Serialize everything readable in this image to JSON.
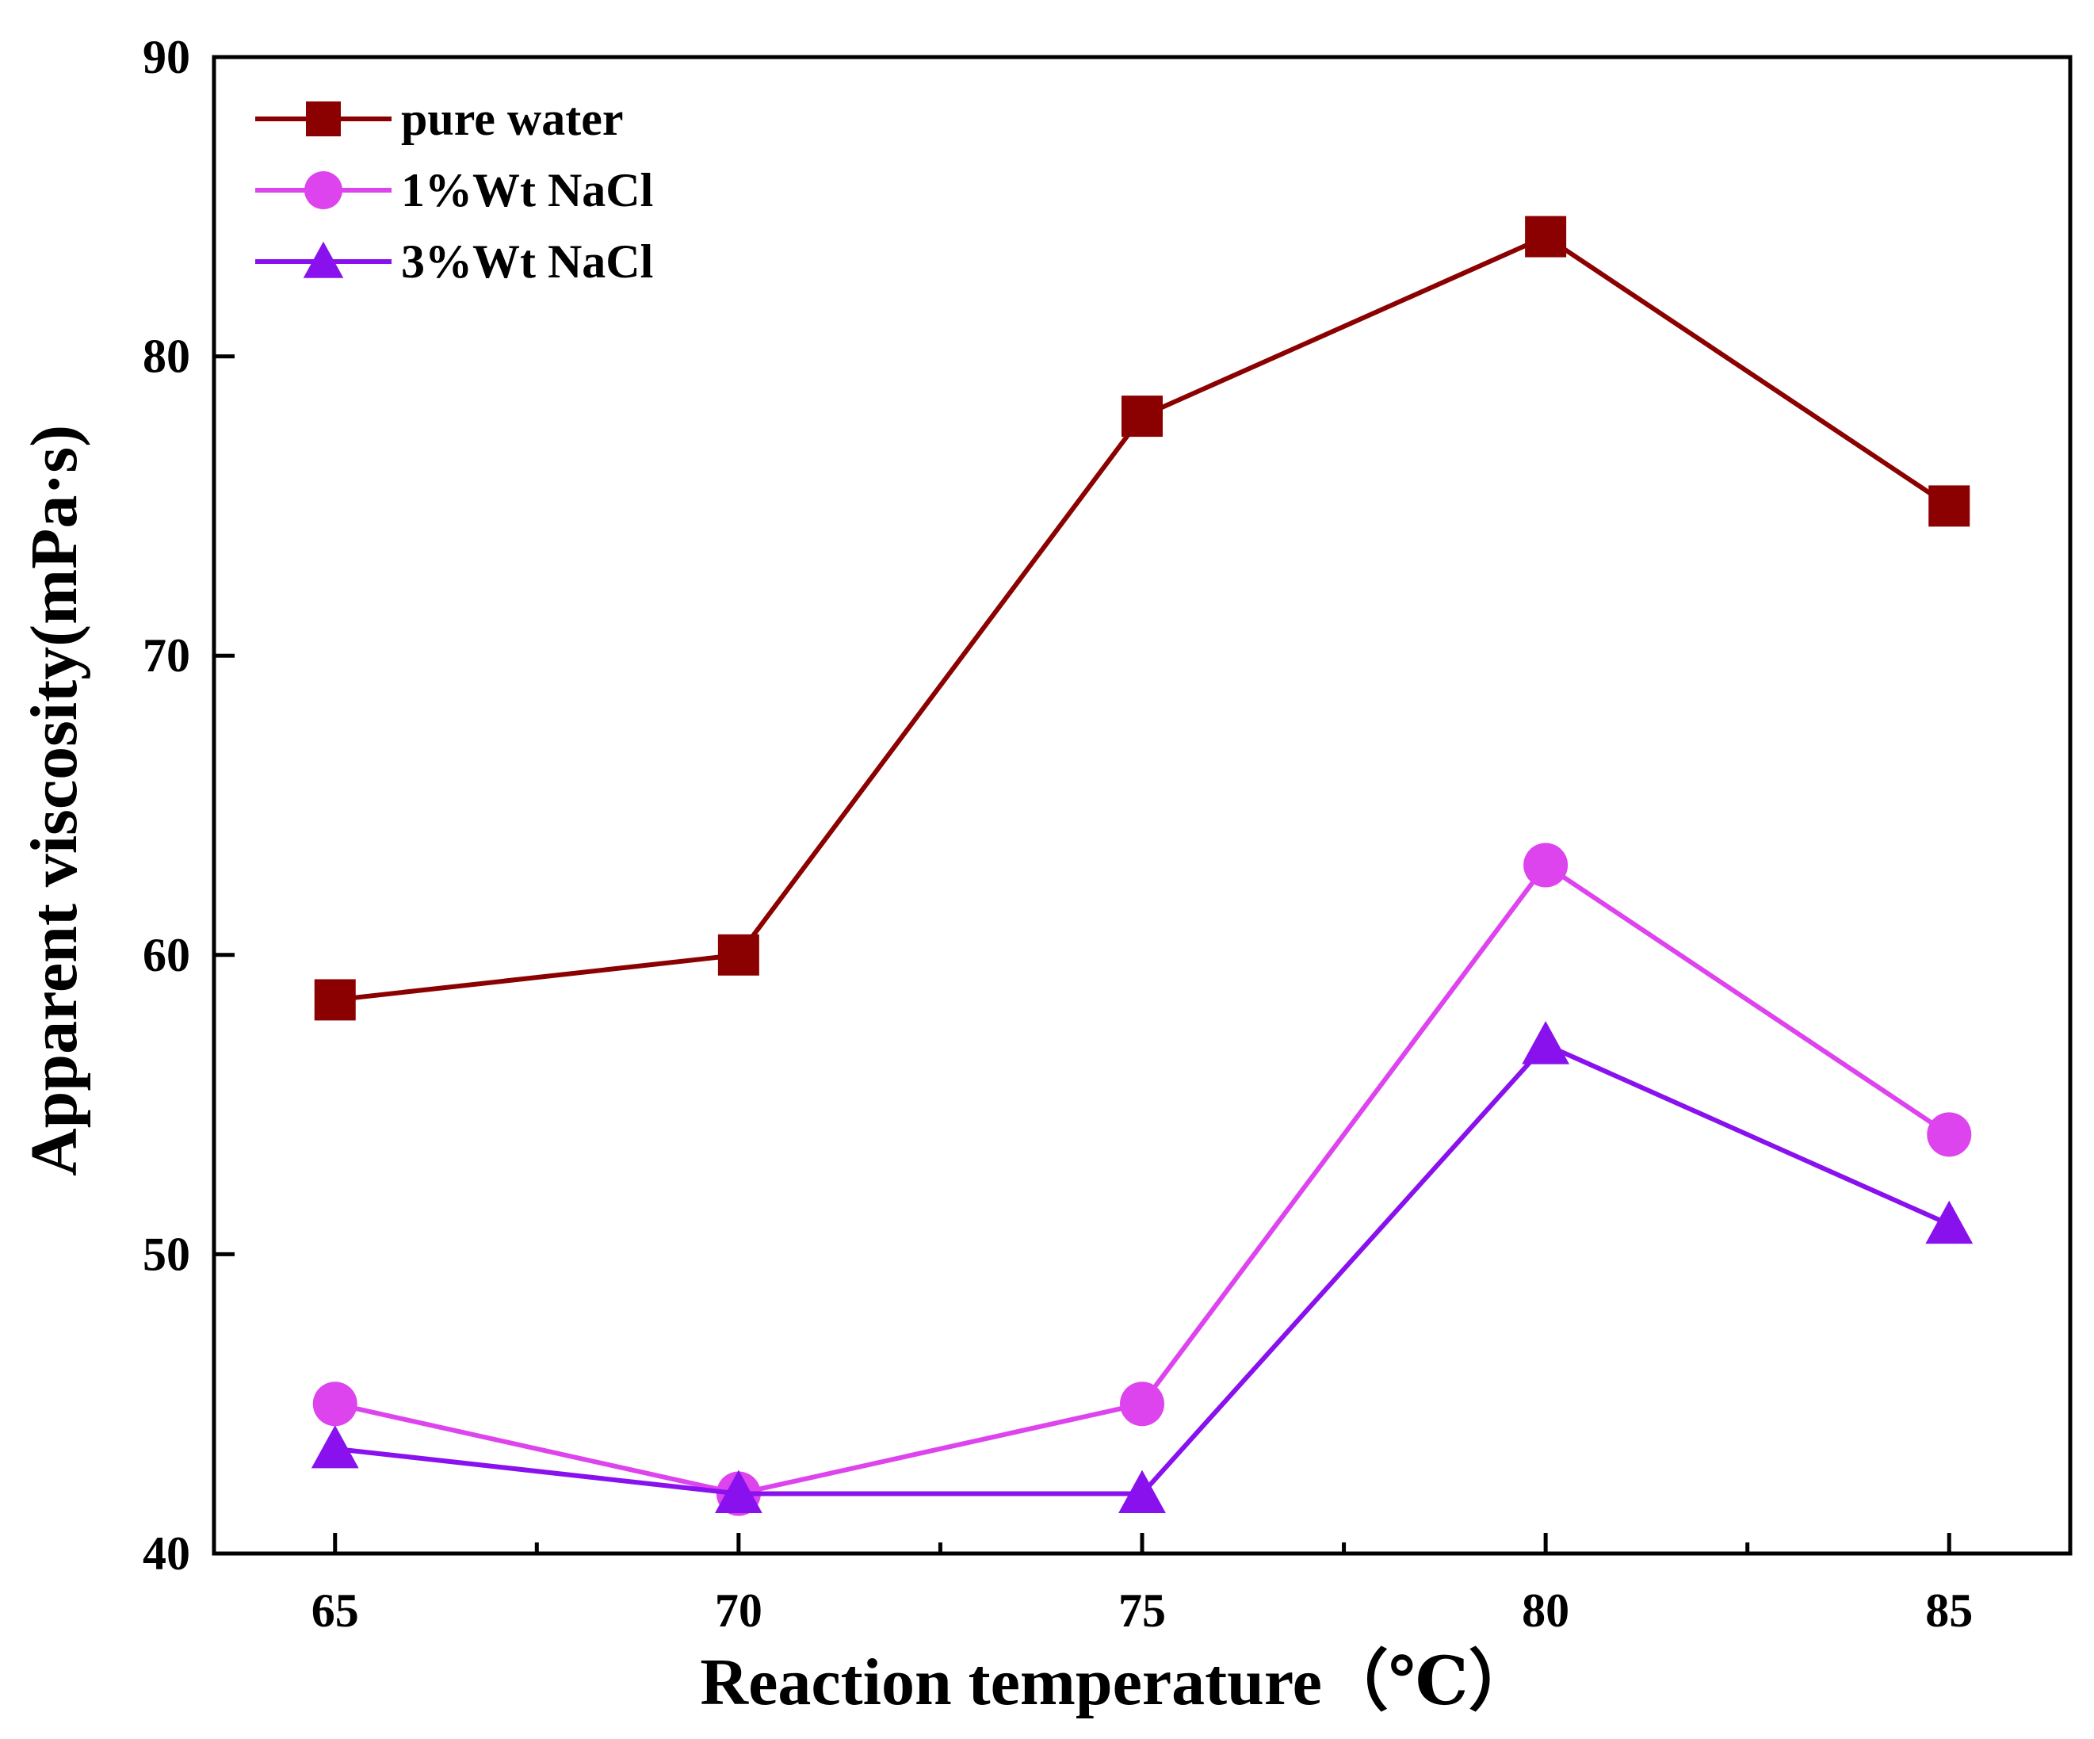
{
  "chart_data": {
    "type": "line",
    "title": "",
    "xlabel": "Reaction temperature（℃）",
    "ylabel": "Apparent viscosity(mPa·s)",
    "x": [
      65,
      70,
      75,
      80,
      85
    ],
    "xlim": [
      63.5,
      86.5
    ],
    "ylim": [
      40,
      90
    ],
    "xticks": [
      65,
      70,
      75,
      80,
      85
    ],
    "xticks_minor": [
      67.5,
      72.5,
      77.5,
      82.5
    ],
    "yticks": [
      40,
      50,
      60,
      70,
      80,
      90
    ],
    "grid": false,
    "legend_position": "top-left",
    "series": [
      {
        "name": "pure water",
        "marker": "square",
        "color": "#8b0000",
        "values": [
          58.5,
          60,
          78,
          84,
          75
        ]
      },
      {
        "name": "1%Wt NaCl",
        "marker": "circle",
        "color": "#dd44ee",
        "values": [
          45,
          42,
          45,
          63,
          54
        ]
      },
      {
        "name": "3%Wt NaCl",
        "marker": "triangle",
        "color": "#8811ee",
        "values": [
          43.5,
          42,
          42,
          57,
          51
        ]
      }
    ]
  }
}
